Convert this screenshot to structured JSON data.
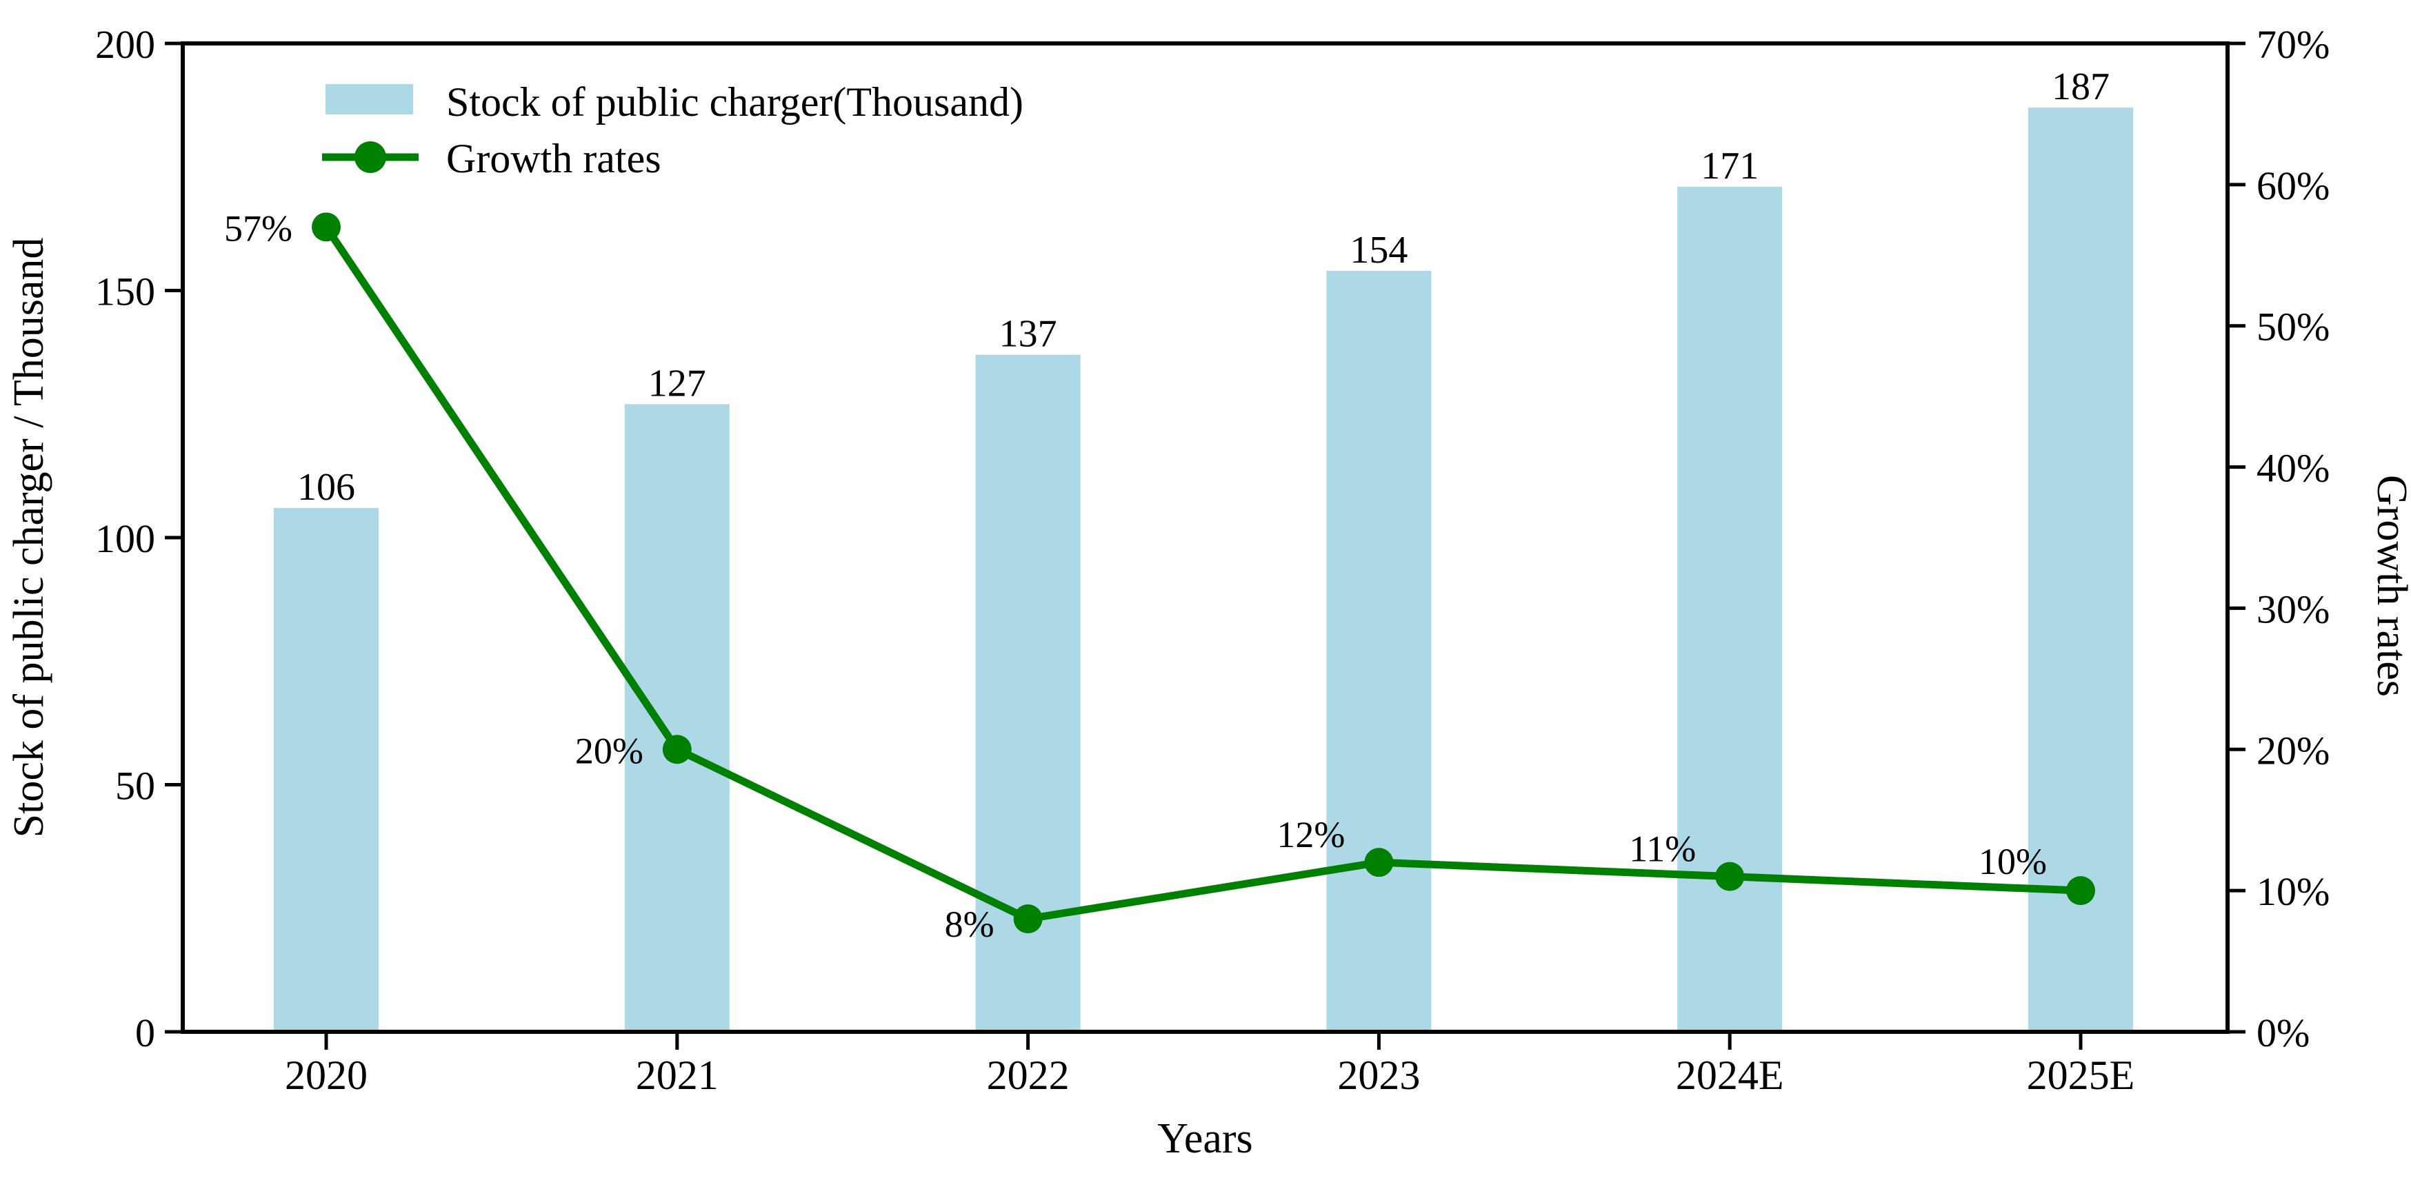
{
  "chart_data": {
    "type": "bar",
    "combo": "bar+line dual axis",
    "categories": [
      "2020",
      "2021",
      "2022",
      "2023",
      "2024E",
      "2025E"
    ],
    "series": [
      {
        "name": "Stock of public charger(Thousand)",
        "kind": "bar",
        "axis": "left",
        "values": [
          106,
          127,
          137,
          154,
          171,
          187
        ],
        "value_labels": [
          "106",
          "127",
          "137",
          "154",
          "171",
          "187"
        ],
        "color": "#add8e6"
      },
      {
        "name": "Growth rates",
        "kind": "line",
        "axis": "right",
        "values": [
          57,
          20,
          8,
          12,
          11,
          10
        ],
        "value_labels": [
          "57%",
          "20%",
          "8%",
          "12%",
          "11%",
          "10%"
        ],
        "color": "#008000"
      }
    ],
    "left_axis": {
      "label": "Stock of public charger / Thousand",
      "min": 0,
      "max": 200,
      "tick_values": [
        0,
        50,
        100,
        150,
        200
      ],
      "tick_labels": [
        "0",
        "50",
        "100",
        "150",
        "200"
      ]
    },
    "right_axis": {
      "label": "Growth rates",
      "min": 0,
      "max": 70,
      "tick_values": [
        0,
        10,
        20,
        30,
        40,
        50,
        60,
        70
      ],
      "tick_labels": [
        "0%",
        "10%",
        "20%",
        "30%",
        "40%",
        "50%",
        "60%",
        "70%"
      ]
    },
    "x_axis": {
      "label": "Years"
    },
    "legend": {
      "position": "upper left",
      "entries": [
        {
          "label": "Stock of public charger(Thousand)",
          "swatch": "bar",
          "color": "#add8e6"
        },
        {
          "label": "Growth rates",
          "swatch": "line-marker",
          "color": "#008000"
        }
      ]
    },
    "grid": false,
    "frame": true,
    "colors": {
      "bar_fill": "#add8e6",
      "line_stroke": "#008000",
      "axis_stroke": "#000000",
      "text": "#000000",
      "background": "#ffffff"
    }
  }
}
